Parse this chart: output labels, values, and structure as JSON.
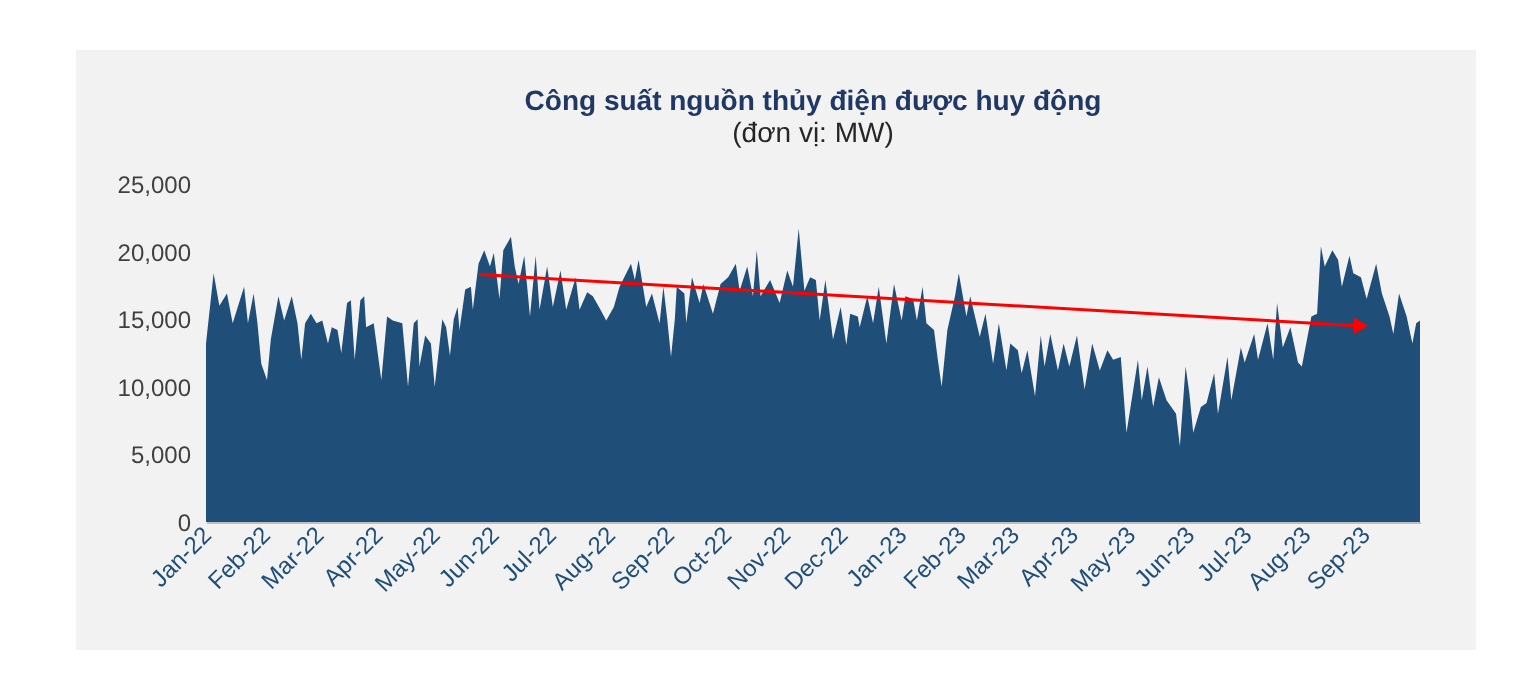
{
  "chart_data": {
    "type": "area",
    "title": "Công suất nguồn thủy điện được huy động",
    "subtitle": "(đơn vị: MW)",
    "xlim": [
      "2022-01-01",
      "2023-09-30"
    ],
    "xticks": [
      {
        "value": "2022-01-01",
        "label": "Jan-22"
      },
      {
        "value": "2022-02-01",
        "label": "Feb-22"
      },
      {
        "value": "2022-03-01",
        "label": "Mar-22"
      },
      {
        "value": "2022-04-01",
        "label": "Apr-22"
      },
      {
        "value": "2022-05-01",
        "label": "May-22"
      },
      {
        "value": "2022-06-01",
        "label": "Jun-22"
      },
      {
        "value": "2022-07-01",
        "label": "Jul-22"
      },
      {
        "value": "2022-08-01",
        "label": "Aug-22"
      },
      {
        "value": "2022-09-01",
        "label": "Sep-22"
      },
      {
        "value": "2022-10-01",
        "label": "Oct-22"
      },
      {
        "value": "2022-11-01",
        "label": "Nov-22"
      },
      {
        "value": "2022-12-01",
        "label": "Dec-22"
      },
      {
        "value": "2023-01-01",
        "label": "Jan-23"
      },
      {
        "value": "2023-02-01",
        "label": "Feb-23"
      },
      {
        "value": "2023-03-01",
        "label": "Mar-23"
      },
      {
        "value": "2023-04-01",
        "label": "Apr-23"
      },
      {
        "value": "2023-05-01",
        "label": "May-23"
      },
      {
        "value": "2023-06-01",
        "label": "Jun-23"
      },
      {
        "value": "2023-07-01",
        "label": "Jul-23"
      },
      {
        "value": "2023-08-01",
        "label": "Aug-23"
      },
      {
        "value": "2023-09-01",
        "label": "Sep-23"
      }
    ],
    "ylim": [
      0,
      25000
    ],
    "yticks": [
      0,
      {
        "value": 5000,
        "label": "5,000"
      },
      {
        "value": 10000,
        "label": "10,000"
      },
      {
        "value": 15000,
        "label": "15,000"
      },
      {
        "value": 20000,
        "label": "20,000"
      },
      {
        "value": 25000,
        "label": "25,000"
      }
    ],
    "series": [
      {
        "color": "#1f4e79",
        "x": [
          "2022-01-01",
          "2022-01-05",
          "2022-01-08",
          "2022-01-12",
          "2022-01-15",
          "2022-01-21",
          "2022-01-23",
          "2022-01-26",
          "2022-01-28",
          "2022-01-30",
          "2022-02-02",
          "2022-02-04",
          "2022-02-08",
          "2022-02-11",
          "2022-02-15",
          "2022-02-18",
          "2022-02-20",
          "2022-02-22",
          "2022-02-25",
          "2022-02-28",
          "2022-03-03",
          "2022-03-06",
          "2022-03-08",
          "2022-03-11",
          "2022-03-13",
          "2022-03-16",
          "2022-03-18",
          "2022-03-20",
          "2022-03-23",
          "2022-03-25",
          "2022-03-26",
          "2022-03-30",
          "2022-04-03",
          "2022-04-06",
          "2022-04-09",
          "2022-04-14",
          "2022-04-17",
          "2022-04-20",
          "2022-04-22",
          "2022-04-23",
          "2022-04-26",
          "2022-04-29",
          "2022-05-01",
          "2022-05-05",
          "2022-05-07",
          "2022-05-09",
          "2022-05-11",
          "2022-05-13",
          "2022-05-14",
          "2022-05-17",
          "2022-05-20",
          "2022-05-21",
          "2022-05-24",
          "2022-05-27",
          "2022-05-30",
          "2022-06-01",
          "2022-06-04",
          "2022-06-06",
          "2022-06-10",
          "2022-06-12",
          "2022-06-14",
          "2022-06-17",
          "2022-06-20",
          "2022-06-23",
          "2022-06-25",
          "2022-06-29",
          "2022-07-02",
          "2022-07-06",
          "2022-07-09",
          "2022-07-14",
          "2022-07-16",
          "2022-07-20",
          "2022-07-23",
          "2022-07-27",
          "2022-07-30",
          "2022-08-03",
          "2022-08-06",
          "2022-08-12",
          "2022-08-14",
          "2022-08-16",
          "2022-08-20",
          "2022-08-23",
          "2022-08-27",
          "2022-08-29",
          "2022-08-31",
          "2022-09-02",
          "2022-09-04",
          "2022-09-05",
          "2022-09-09",
          "2022-09-10",
          "2022-09-13",
          "2022-09-17",
          "2022-09-19",
          "2022-09-24",
          "2022-09-28",
          "2022-10-02",
          "2022-10-06",
          "2022-10-08",
          "2022-10-12",
          "2022-10-15",
          "2022-10-17",
          "2022-10-19",
          "2022-10-24",
          "2022-10-29",
          "2022-11-02",
          "2022-11-05",
          "2022-11-08",
          "2022-11-11",
          "2022-11-14",
          "2022-11-17",
          "2022-11-19",
          "2022-11-22",
          "2022-11-26",
          "2022-11-30",
          "2022-12-03",
          "2022-12-05",
          "2022-12-09",
          "2022-12-10",
          "2022-12-14",
          "2022-12-17",
          "2022-12-20",
          "2022-12-24",
          "2022-12-28",
          "2023-01-01",
          "2023-01-03",
          "2023-01-07",
          "2023-01-09",
          "2023-01-12",
          "2023-01-14",
          "2023-01-18",
          "2023-01-20",
          "2023-01-22",
          "2023-01-25",
          "2023-01-29",
          "2023-01-31",
          "2023-02-04",
          "2023-02-06",
          "2023-02-11",
          "2023-02-14",
          "2023-02-18",
          "2023-02-21",
          "2023-02-25",
          "2023-02-27",
          "2023-03-03",
          "2023-03-05",
          "2023-03-08",
          "2023-03-12",
          "2023-03-15",
          "2023-03-17",
          "2023-03-20",
          "2023-03-24",
          "2023-03-27",
          "2023-03-30",
          "2023-04-03",
          "2023-04-07",
          "2023-04-11",
          "2023-04-15",
          "2023-04-19",
          "2023-04-22",
          "2023-04-26",
          "2023-04-29",
          "2023-05-05",
          "2023-05-07",
          "2023-05-10",
          "2023-05-13",
          "2023-05-16",
          "2023-05-20",
          "2023-05-25",
          "2023-05-27",
          "2023-05-30",
          "2023-06-01",
          "2023-06-03",
          "2023-06-07",
          "2023-06-10",
          "2023-06-14",
          "2023-06-16",
          "2023-06-21",
          "2023-06-23",
          "2023-06-28",
          "2023-06-30",
          "2023-07-05",
          "2023-07-07",
          "2023-07-12",
          "2023-07-15",
          "2023-07-17",
          "2023-07-20",
          "2023-07-24",
          "2023-07-28",
          "2023-07-30",
          "2023-08-04",
          "2023-08-07",
          "2023-08-09",
          "2023-08-11",
          "2023-08-15",
          "2023-08-18",
          "2023-08-20",
          "2023-08-24",
          "2023-08-26",
          "2023-08-30",
          "2023-09-02",
          "2023-09-07",
          "2023-09-10",
          "2023-09-14",
          "2023-09-16",
          "2023-09-19",
          "2023-09-23",
          "2023-09-26",
          "2023-09-28",
          "2023-09-30"
        ],
        "values": [
          13200,
          18400,
          16000,
          16900,
          14700,
          17400,
          14700,
          16900,
          14700,
          11700,
          10500,
          13500,
          16700,
          14900,
          16700,
          14700,
          12000,
          14700,
          15400,
          14700,
          14900,
          13200,
          14400,
          14200,
          12500,
          16200,
          16400,
          12000,
          16400,
          16700,
          14400,
          14700,
          10500,
          15200,
          14900,
          14700,
          10000,
          14700,
          15000,
          11500,
          13800,
          13200,
          10000,
          15000,
          14400,
          12300,
          15000,
          15900,
          14200,
          17200,
          17400,
          15700,
          19100,
          20100,
          18900,
          19900,
          16500,
          20100,
          21100,
          18900,
          17600,
          19700,
          15200,
          19700,
          15700,
          18900,
          15900,
          18600,
          15700,
          18100,
          15700,
          17000,
          16700,
          15700,
          14900,
          15900,
          17400,
          19100,
          17900,
          19400,
          15900,
          16900,
          14700,
          17400,
          15000,
          12200,
          15000,
          17400,
          16900,
          14700,
          18100,
          16200,
          17600,
          15400,
          17600,
          18100,
          19100,
          17100,
          18900,
          16700,
          20100,
          16700,
          17900,
          16200,
          18600,
          17400,
          21700,
          17100,
          18100,
          17900,
          14900,
          17900,
          13500,
          15900,
          13100,
          15400,
          15200,
          14400,
          16700,
          14700,
          17400,
          13200,
          17600,
          14900,
          16700,
          16500,
          14900,
          17400,
          14700,
          14200,
          12000,
          10000,
          14200,
          16700,
          18400,
          15200,
          16700,
          13700,
          15400,
          11700,
          14700,
          11200,
          13200,
          12700,
          11000,
          12700,
          9300,
          13800,
          11500,
          13900,
          11200,
          13200,
          11500,
          13800,
          9800,
          13200,
          11200,
          12700,
          12000,
          12200,
          6600,
          12000,
          9000,
          11500,
          8500,
          10700,
          9000,
          8000,
          5600,
          11500,
          9500,
          6600,
          8500,
          8800,
          11000,
          8000,
          12200,
          9000,
          12900,
          11800,
          13900,
          12000,
          14700,
          12000,
          16200,
          12900,
          14400,
          11800,
          11500,
          15200,
          15400,
          20400,
          18900,
          20100,
          19400,
          17400,
          19700,
          18400,
          18100,
          16500,
          19100,
          16900,
          15200,
          13900,
          16900,
          15200,
          13200,
          14700,
          14900
        ]
      },
      {
        "type": "line",
        "color": "#ff0000",
        "x": [
          "2022-05-25",
          "2023-08-30"
        ],
        "values": [
          18300,
          14500
        ]
      }
    ]
  }
}
